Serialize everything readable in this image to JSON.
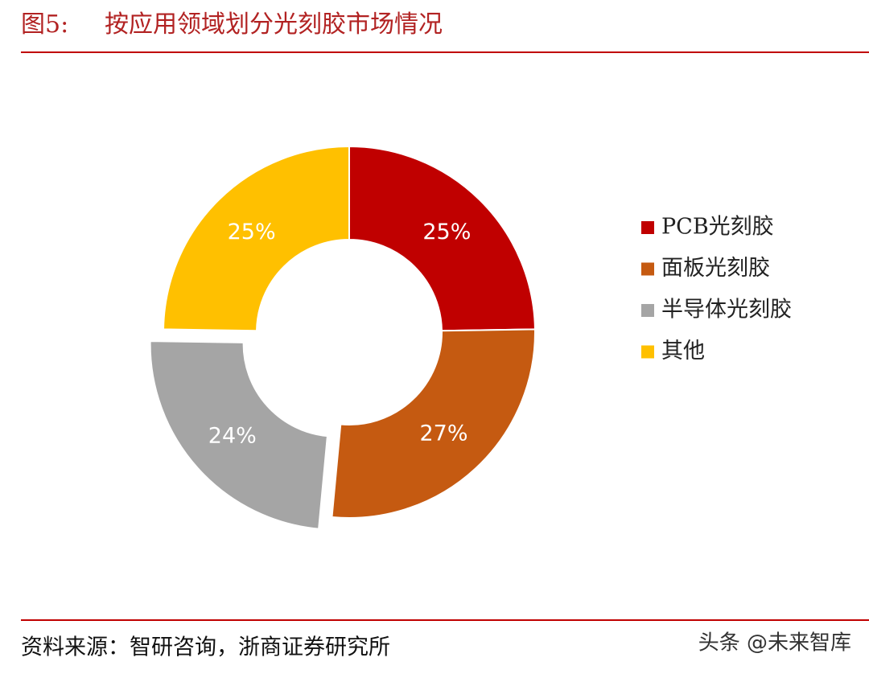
{
  "chart_data": {
    "type": "donut",
    "figure_label": "图5:",
    "title": "按应用领域划分光刻胶市场情况",
    "categories": [
      "PCB光刻胶",
      "面板光刻胶",
      "半导体光刻胶",
      "其他"
    ],
    "values": [
      25,
      27,
      24,
      25
    ],
    "value_labels": [
      "25%",
      "27%",
      "24%",
      "25%"
    ],
    "colors": [
      "#C00000",
      "#C55A11",
      "#A5A5A5",
      "#FFC000"
    ],
    "explode": [
      false,
      false,
      true,
      false
    ],
    "legend": "right",
    "source": "资料来源：智研咨询，浙商证券研究所",
    "watermark": "头条 @未来智库"
  }
}
